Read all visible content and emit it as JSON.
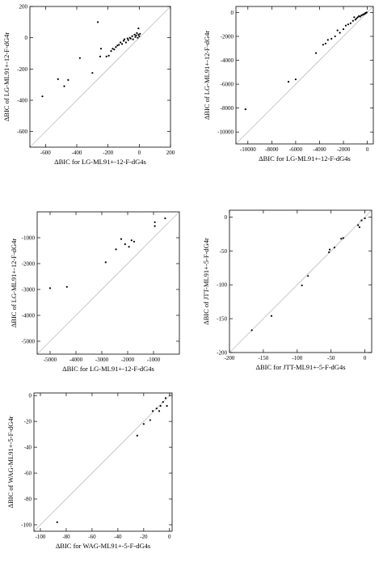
{
  "chart_data": [
    {
      "type": "scatter",
      "title": "",
      "xlabel": "ΔBIC for LG-ML91+-12-F-dG4s",
      "ylabel": "ΔBIC of LG-ML91+-12-F-dG4r",
      "xlim": [
        -700,
        200
      ],
      "ylim": [
        -700,
        200
      ],
      "xticks": [
        "-600",
        "-400",
        "-200",
        "0",
        "200"
      ],
      "yticks": [
        "-600",
        "-400",
        "-200",
        "0",
        "200"
      ],
      "diagonal": true,
      "grid": false,
      "points": [
        [
          -620,
          -375
        ],
        [
          -520,
          -265
        ],
        [
          -480,
          -310
        ],
        [
          -455,
          -270
        ],
        [
          -380,
          -130
        ],
        [
          -300,
          -225
        ],
        [
          -265,
          100
        ],
        [
          -250,
          -120
        ],
        [
          -245,
          -70
        ],
        [
          -210,
          -120
        ],
        [
          -195,
          -115
        ],
        [
          -180,
          -85
        ],
        [
          -170,
          -70
        ],
        [
          -160,
          -75
        ],
        [
          -150,
          -60
        ],
        [
          -140,
          -50
        ],
        [
          -130,
          -45
        ],
        [
          -120,
          -30
        ],
        [
          -110,
          -40
        ],
        [
          -100,
          -20
        ],
        [
          -95,
          -10
        ],
        [
          -85,
          -30
        ],
        [
          -75,
          -5
        ],
        [
          -70,
          -15
        ],
        [
          -60,
          0
        ],
        [
          -55,
          -5
        ],
        [
          -45,
          10
        ],
        [
          -40,
          -10
        ],
        [
          -30,
          20
        ],
        [
          -25,
          5
        ],
        [
          -20,
          15
        ],
        [
          -15,
          30
        ],
        [
          -10,
          0
        ],
        [
          -5,
          20
        ],
        [
          0,
          10
        ],
        [
          -5,
          60
        ],
        [
          5,
          25
        ]
      ]
    },
    {
      "type": "scatter",
      "title": "",
      "xlabel": "ΔBIC for LG-ML91+-12-F-dG4s",
      "ylabel": "ΔBIC of LG-ML91+-12-F-dG4r",
      "xlim": [
        -11000,
        500
      ],
      "ylim": [
        -11000,
        500
      ],
      "xticks": [
        "-10000",
        "-8000",
        "-6000",
        "-4000",
        "-2000",
        "0"
      ],
      "yticks": [
        "-10000",
        "-8000",
        "-6000",
        "-4000",
        "-2000",
        "0"
      ],
      "diagonal": true,
      "grid": false,
      "points": [
        [
          -10200,
          -8100
        ],
        [
          -6600,
          -5800
        ],
        [
          -6000,
          -5600
        ],
        [
          -4300,
          -3400
        ],
        [
          -3700,
          -2700
        ],
        [
          -3500,
          -2600
        ],
        [
          -3300,
          -2300
        ],
        [
          -3000,
          -2200
        ],
        [
          -2700,
          -2000
        ],
        [
          -2500,
          -1500
        ],
        [
          -2300,
          -1700
        ],
        [
          -2000,
          -1400
        ],
        [
          -1800,
          -1100
        ],
        [
          -1600,
          -1000
        ],
        [
          -1400,
          -900
        ],
        [
          -1200,
          -700
        ],
        [
          -1000,
          -600
        ],
        [
          -900,
          -500
        ],
        [
          -800,
          -400
        ],
        [
          -700,
          -300
        ],
        [
          -600,
          -350
        ],
        [
          -500,
          -250
        ],
        [
          -400,
          -200
        ],
        [
          -300,
          -150
        ],
        [
          -200,
          -100
        ],
        [
          -150,
          -50
        ],
        [
          -100,
          -20
        ],
        [
          -50,
          0
        ],
        [
          -1100,
          -400
        ]
      ]
    },
    {
      "type": "scatter",
      "title": "",
      "xlabel": "ΔBIC for LG-ML91+-12-F-dG4s",
      "ylabel": "ΔBIC of LG-ML91+-12-F-dG4r",
      "xlim": [
        -5500,
        0
      ],
      "ylim": [
        -5500,
        0
      ],
      "xticks": [
        "-5000",
        "-4000",
        "-3000",
        "-2000",
        "-1000"
      ],
      "yticks": [
        "-5000",
        "-4000",
        "-3000",
        "-2000",
        "-1000"
      ],
      "diagonal": true,
      "grid": false,
      "points": [
        [
          -5000,
          -2950
        ],
        [
          -4350,
          -2900
        ],
        [
          -2850,
          -1950
        ],
        [
          -2450,
          -1450
        ],
        [
          -2250,
          -1050
        ],
        [
          -2100,
          -1250
        ],
        [
          -1950,
          -1350
        ],
        [
          -1850,
          -1100
        ],
        [
          -1750,
          -1150
        ],
        [
          -950,
          -550
        ],
        [
          -950,
          -400
        ],
        [
          -550,
          -250
        ]
      ]
    },
    {
      "type": "scatter",
      "title": "",
      "xlabel": "ΔBIC for JTT-ML91+-5-F-dG4s",
      "ylabel": "ΔBIC of JTT-ML91+-5-F-dG4r",
      "xlim": [
        -200,
        10
      ],
      "ylim": [
        -200,
        10
      ],
      "xticks": [
        "-200",
        "-150",
        "-100",
        "-50",
        "0"
      ],
      "yticks": [
        "-200",
        "-150",
        "-100",
        "-50",
        "0"
      ],
      "diagonal": true,
      "grid": false,
      "points": [
        [
          -167,
          -167
        ],
        [
          -138,
          -146
        ],
        [
          -93,
          -101
        ],
        [
          -84,
          -87
        ],
        [
          -53,
          -52
        ],
        [
          -52,
          -48
        ],
        [
          -45,
          -45
        ],
        [
          -35,
          -32
        ],
        [
          -32,
          -31
        ],
        [
          -10,
          -12
        ],
        [
          -8,
          -15
        ],
        [
          -5,
          -5
        ],
        [
          0,
          -2
        ]
      ]
    },
    {
      "type": "scatter",
      "title": "",
      "xlabel": "ΔBIC for WAG-ML91+-5-F-dG4s",
      "ylabel": "ΔBIC of WAG-ML91+-5-F-dG4r",
      "xlim": [
        -105,
        2
      ],
      "ylim": [
        -105,
        2
      ],
      "xticks": [
        "-100",
        "-80",
        "-60",
        "-40",
        "-20",
        "0"
      ],
      "yticks": [
        "-100",
        "-80",
        "-60",
        "-40",
        "-20",
        "0"
      ],
      "diagonal": true,
      "grid": false,
      "points": [
        [
          -87,
          -98
        ],
        [
          -25,
          -31
        ],
        [
          -20,
          -22
        ],
        [
          -15,
          -19
        ],
        [
          -13,
          -12
        ],
        [
          -10,
          -10
        ],
        [
          -8,
          -12
        ],
        [
          -7,
          -8
        ],
        [
          -5,
          -5
        ],
        [
          -3,
          -2
        ],
        [
          -2,
          -8
        ]
      ]
    }
  ]
}
